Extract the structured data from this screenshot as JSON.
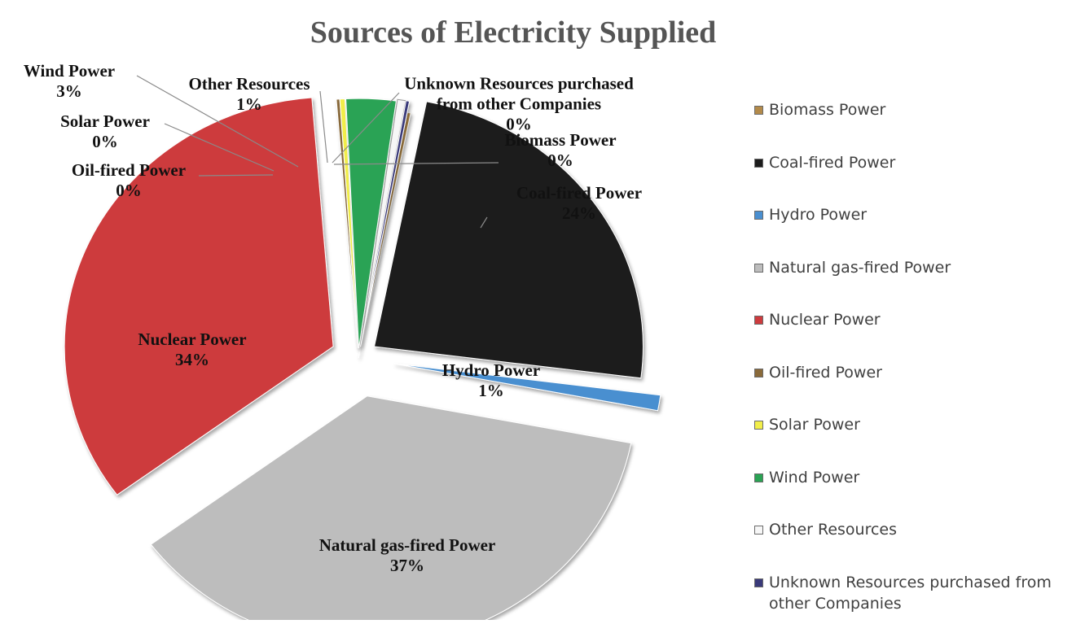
{
  "chart_data": {
    "type": "pie",
    "title": "Sources of Electricity Supplied",
    "legend_position": "right",
    "slices": [
      {
        "name": "Biomass Power",
        "percent_label": "0%",
        "value": 0.2,
        "color": "#b38a4a"
      },
      {
        "name": "Coal-fired Power",
        "percent_label": "24%",
        "value": 24,
        "color": "#1c1c1c"
      },
      {
        "name": "Hydro Power",
        "percent_label": "1%",
        "value": 1,
        "color": "#4a8fd0"
      },
      {
        "name": "Natural gas-fired Power",
        "percent_label": "37%",
        "value": 37,
        "color": "#bdbdbd"
      },
      {
        "name": "Nuclear Power",
        "percent_label": "34%",
        "value": 34,
        "color": "#cd3b3e"
      },
      {
        "name": "Oil-fired Power",
        "percent_label": "0%",
        "value": 0.2,
        "color": "#8a6a3a"
      },
      {
        "name": "Solar Power",
        "percent_label": "0%",
        "value": 0.3,
        "color": "#f2ee4a"
      },
      {
        "name": "Wind Power",
        "percent_label": "3%",
        "value": 3,
        "color": "#2aa354"
      },
      {
        "name": "Other Resources",
        "percent_label": "1%",
        "value": 0.5,
        "color": "#f7f7f7"
      },
      {
        "name": "Unknown Resources purchased from other Companies",
        "percent_label": "0%",
        "value": 0.2,
        "color": "#3a3a7a"
      }
    ]
  }
}
